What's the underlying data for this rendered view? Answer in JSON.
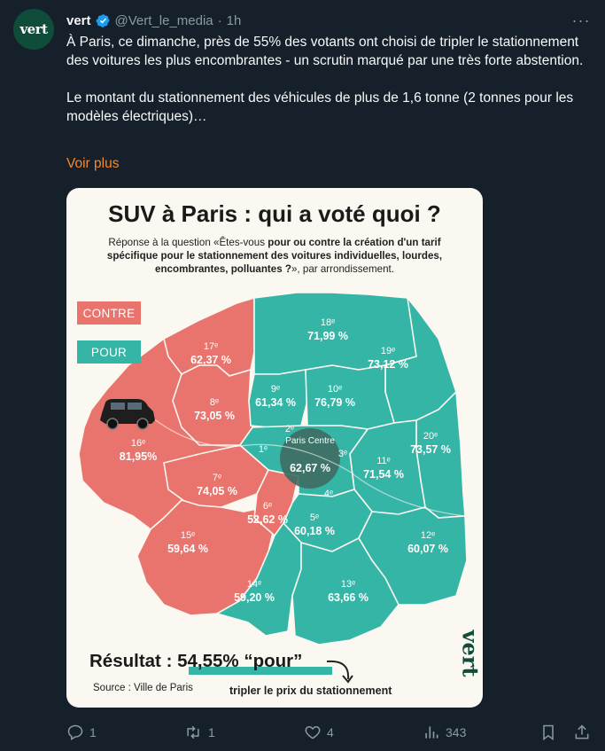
{
  "post": {
    "avatar_text": "vert",
    "author_name": "vert",
    "handle": "@Vert_le_media",
    "separator": "·",
    "time": "1h",
    "more_label": "···",
    "text_p1": "À Paris, ce dimanche, près de 55% des votants ont choisi de tripler le stationnement des voitures les plus encombrantes - un scrutin marqué par une très forte abstention.",
    "text_p2": "Le montant du stationnement des véhicules de plus de 1,6 tonne (2 tonnes pour les modèles électriques)…",
    "show_more": "Voir plus"
  },
  "media": {
    "title": "SUV à Paris : qui a voté quoi ?",
    "subtitle_a": "Réponse à la question «Êtes-vous ",
    "subtitle_bold": "pour ou contre la création d'un tarif spécifique pour le stationnement des voitures individuelles, lourdes, encombrantes, polluantes ?",
    "subtitle_b": "», par arrondissement.",
    "legend_contre": "CONTRE",
    "legend_pour": "POUR",
    "result_prefix": "Résultat : ",
    "result_value": "54,55% “pour”",
    "source": "Source : Ville de Paris",
    "note": "tripler le prix du stationnement",
    "logo_text": "vert",
    "districts": [
      {
        "name": "18ᵉ",
        "value": "71,99 %"
      },
      {
        "name": "17ᵉ",
        "value": "62,37 %"
      },
      {
        "name": "19ᵉ",
        "value": "73,12 %"
      },
      {
        "name": "9ᵉ",
        "value": "61,34 %"
      },
      {
        "name": "10ᵉ",
        "value": "76,79 %"
      },
      {
        "name": "8ᵉ",
        "value": "73,05 %"
      },
      {
        "name": "20ᵉ",
        "value": "73,57 %"
      },
      {
        "name": "2ᵉ",
        "value": ""
      },
      {
        "name": "1ᵉ",
        "value": ""
      },
      {
        "name": "3ᵉ",
        "value": ""
      },
      {
        "name": "Paris Centre",
        "value": "62,67 %"
      },
      {
        "name": "16ᵉ",
        "value": "81,95%"
      },
      {
        "name": "11ᵉ",
        "value": "71,54 %"
      },
      {
        "name": "7ᵉ",
        "value": "74,05 %"
      },
      {
        "name": "4ᵉ",
        "value": ""
      },
      {
        "name": "6ᵉ",
        "value": "52,62 %"
      },
      {
        "name": "5ᵉ",
        "value": "60,18 %"
      },
      {
        "name": "15ᵉ",
        "value": "59,64 %"
      },
      {
        "name": "12ᵉ",
        "value": "60,07 %"
      },
      {
        "name": "14ᵉ",
        "value": "59,20 %"
      },
      {
        "name": "13ᵉ",
        "value": "63,66 %"
      }
    ]
  },
  "actions": {
    "replies": "1",
    "reposts": "1",
    "likes": "4",
    "views": "343"
  },
  "colors": {
    "contre": "#e9736d",
    "pour": "#34b5a6",
    "accent_link": "#f5892a",
    "background": "#15202b"
  }
}
